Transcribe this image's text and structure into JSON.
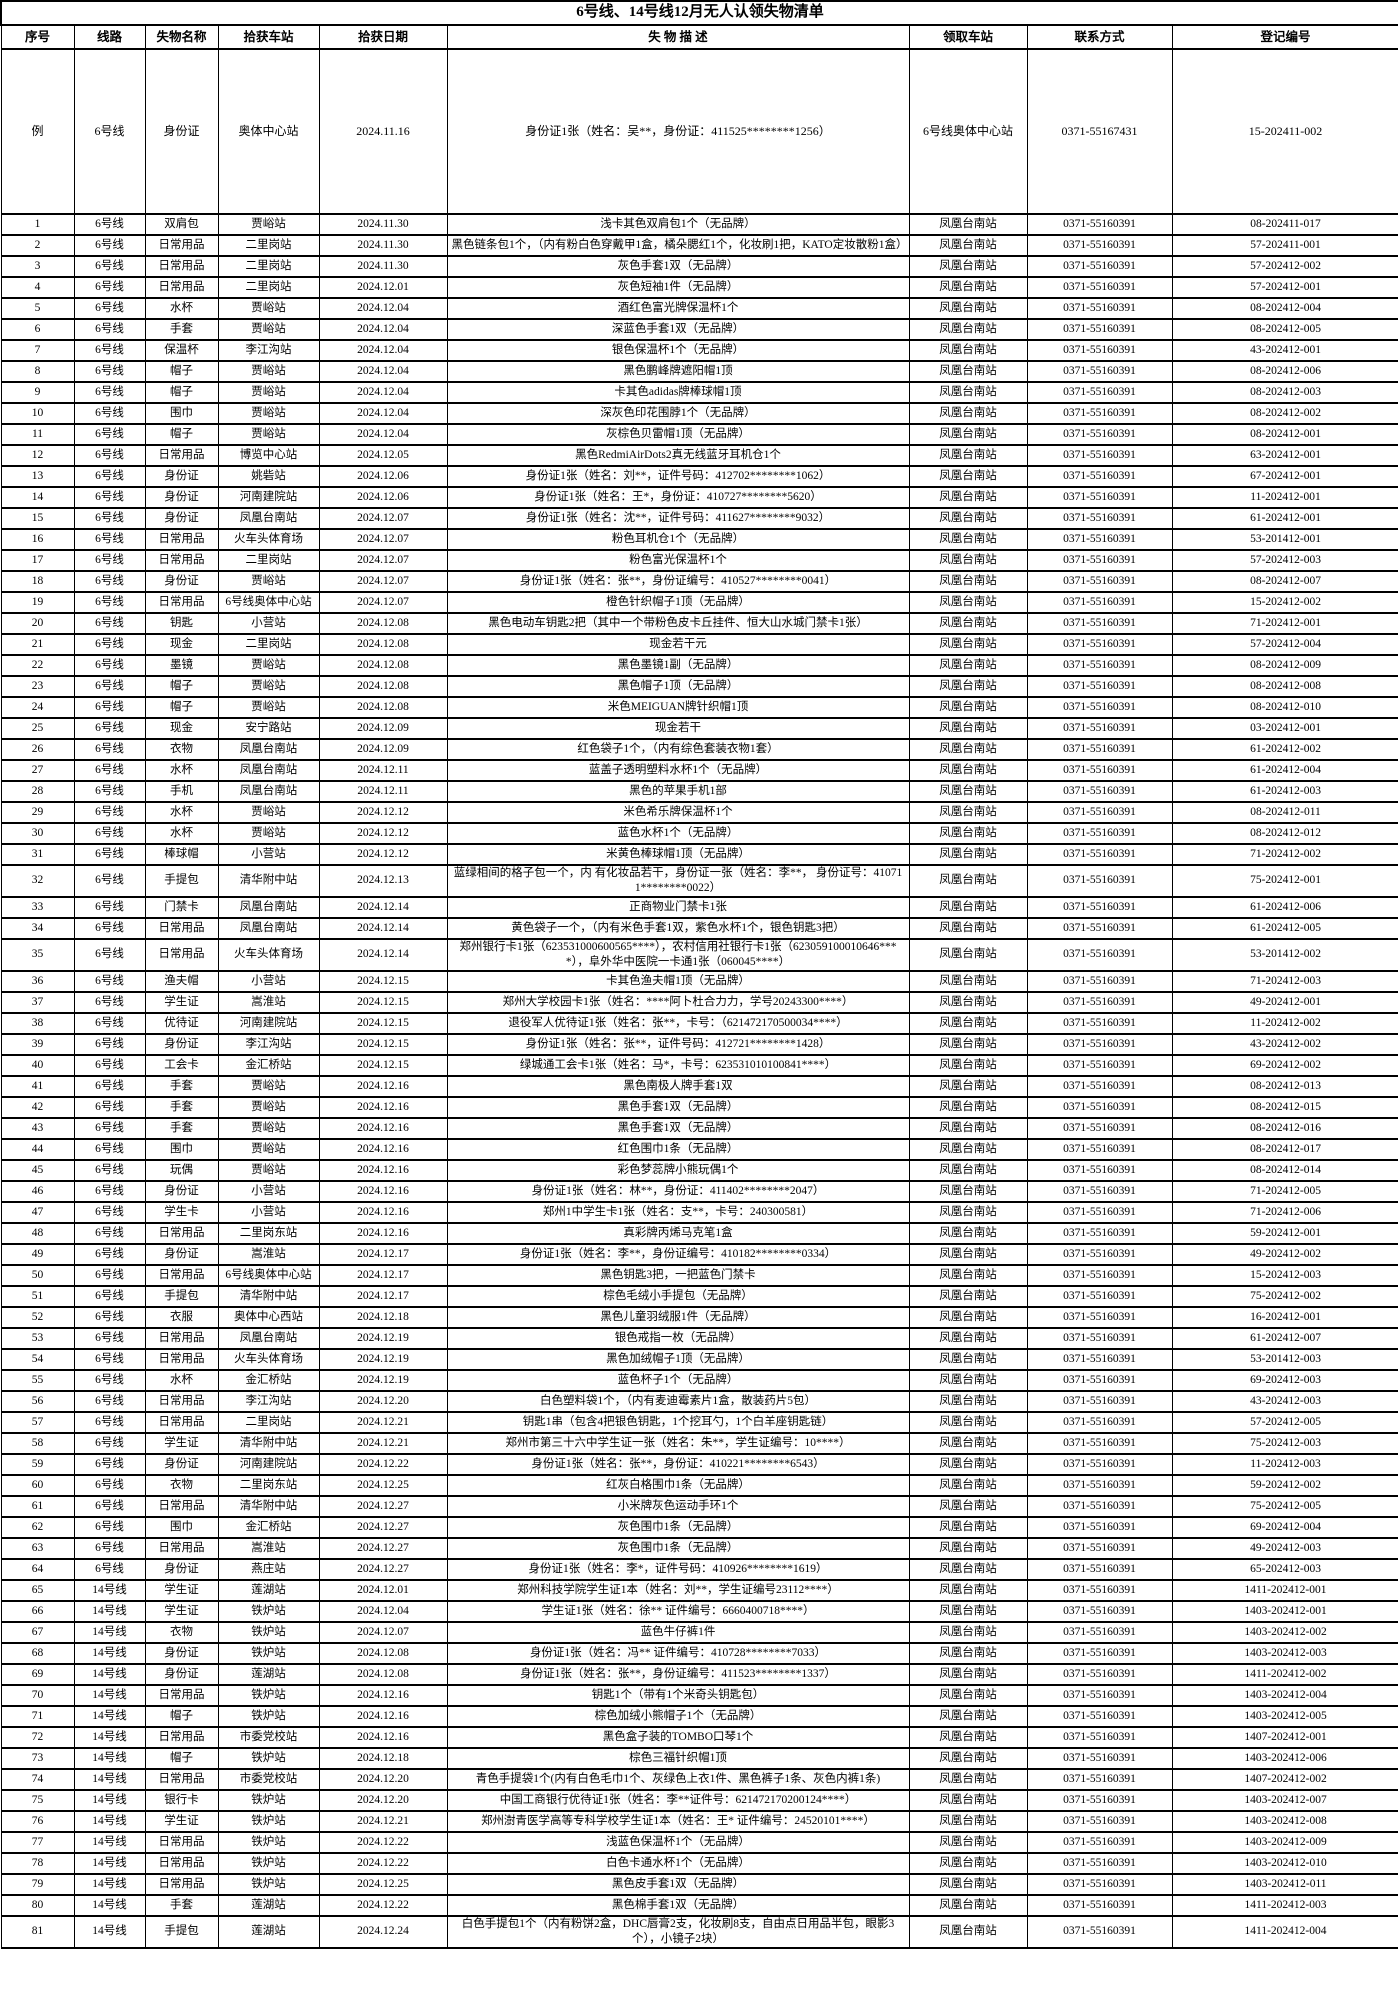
{
  "title": "6号线、14号线12月无人认领失物清单",
  "columns": [
    "序号",
    "线路",
    "失物名称",
    "拾获车站",
    "拾获日期",
    "失 物 描 述",
    "领取车站",
    "联系方式",
    "登记编号"
  ],
  "column_keys": [
    "no",
    "line",
    "item",
    "station",
    "date",
    "description",
    "pickup",
    "contact",
    "regno"
  ],
  "example_row": [
    "例",
    "6号线",
    "身份证",
    "奥体中心站",
    "2024.11.16",
    "身份证1张（姓名：吴**，身份证：411525********1256）",
    "6号线奥体中心站",
    "0371-55167431",
    "15-202411-002"
  ],
  "rows": [
    [
      "1",
      "6号线",
      "双肩包",
      "贾峪站",
      "2024.11.30",
      "浅卡其色双肩包1个（无品牌）",
      "凤凰台南站",
      "0371-55160391",
      "08-202411-017"
    ],
    [
      "2",
      "6号线",
      "日常用品",
      "二里岗站",
      "2024.11.30",
      "黑色链条包1个，（内有粉白色穿戴甲1盒，橘朵腮红1个，化妆刷1把，KATO定妆散粉1盒）",
      "凤凰台南站",
      "0371-55160391",
      "57-202411-001"
    ],
    [
      "3",
      "6号线",
      "日常用品",
      "二里岗站",
      "2024.11.30",
      "灰色手套1双（无品牌）",
      "凤凰台南站",
      "0371-55160391",
      "57-202412-002"
    ],
    [
      "4",
      "6号线",
      "日常用品",
      "二里岗站",
      "2024.12.01",
      "灰色短袖1件（无品牌）",
      "凤凰台南站",
      "0371-55160391",
      "57-202412-001"
    ],
    [
      "5",
      "6号线",
      "水杯",
      "贾峪站",
      "2024.12.04",
      "酒红色富光牌保温杯1个",
      "凤凰台南站",
      "0371-55160391",
      "08-202412-004"
    ],
    [
      "6",
      "6号线",
      "手套",
      "贾峪站",
      "2024.12.04",
      "深蓝色手套1双（无品牌）",
      "凤凰台南站",
      "0371-55160391",
      "08-202412-005"
    ],
    [
      "7",
      "6号线",
      "保温杯",
      "李江沟站",
      "2024.12.04",
      "银色保温杯1个（无品牌）",
      "凤凰台南站",
      "0371-55160391",
      "43-202412-001"
    ],
    [
      "8",
      "6号线",
      "帽子",
      "贾峪站",
      "2024.12.04",
      "黑色鹏峰牌遮阳帽1顶",
      "凤凰台南站",
      "0371-55160391",
      "08-202412-006"
    ],
    [
      "9",
      "6号线",
      "帽子",
      "贾峪站",
      "2024.12.04",
      "卡其色adidas牌棒球帽1顶",
      "凤凰台南站",
      "0371-55160391",
      "08-202412-003"
    ],
    [
      "10",
      "6号线",
      "围巾",
      "贾峪站",
      "2024.12.04",
      "深灰色印花围脖1个（无品牌）",
      "凤凰台南站",
      "0371-55160391",
      "08-202412-002"
    ],
    [
      "11",
      "6号线",
      "帽子",
      "贾峪站",
      "2024.12.04",
      "灰棕色贝雷帽1顶（无品牌）",
      "凤凰台南站",
      "0371-55160391",
      "08-202412-001"
    ],
    [
      "12",
      "6号线",
      "日常用品",
      "博览中心站",
      "2024.12.05",
      "黑色RedmiAirDots2真无线蓝牙耳机仓1个",
      "凤凰台南站",
      "0371-55160391",
      "63-202412-001"
    ],
    [
      "13",
      "6号线",
      "身份证",
      "姚砦站",
      "2024.12.06",
      "身份证1张（姓名：刘**，证件号码：412702********1062）",
      "凤凰台南站",
      "0371-55160391",
      "67-202412-001"
    ],
    [
      "14",
      "6号线",
      "身份证",
      "河南建院站",
      "2024.12.06",
      "身份证1张（姓名：王*，身份证：410727********5620）",
      "凤凰台南站",
      "0371-55160391",
      "11-202412-001"
    ],
    [
      "15",
      "6号线",
      "身份证",
      "凤凰台南站",
      "2024.12.07",
      "身份证1张（姓名：沈**，证件号码：411627********9032）",
      "凤凰台南站",
      "0371-55160391",
      "61-202412-001"
    ],
    [
      "16",
      "6号线",
      "日常用品",
      "火车头体育场",
      "2024.12.07",
      "粉色耳机仓1个（无品牌）",
      "凤凰台南站",
      "0371-55160391",
      "53-201412-001"
    ],
    [
      "17",
      "6号线",
      "日常用品",
      "二里岗站",
      "2024.12.07",
      "粉色富光保温杯1个",
      "凤凰台南站",
      "0371-55160391",
      "57-202412-003"
    ],
    [
      "18",
      "6号线",
      "身份证",
      "贾峪站",
      "2024.12.07",
      "身份证1张（姓名：张**，身份证编号：410527********0041）",
      "凤凰台南站",
      "0371-55160391",
      "08-202412-007"
    ],
    [
      "19",
      "6号线",
      "日常用品",
      "6号线奥体中心站",
      "2024.12.07",
      "橙色针织帽子1顶（无品牌）",
      "凤凰台南站",
      "0371-55160391",
      "15-202412-002"
    ],
    [
      "20",
      "6号线",
      "钥匙",
      "小营站",
      "2024.12.08",
      "黑色电动车钥匙2把（其中一个带粉色皮卡丘挂件、恒大山水城门禁卡1张）",
      "凤凰台南站",
      "0371-55160391",
      "71-202412-001"
    ],
    [
      "21",
      "6号线",
      "现金",
      "二里岗站",
      "2024.12.08",
      "现金若干元",
      "凤凰台南站",
      "0371-55160391",
      "57-202412-004"
    ],
    [
      "22",
      "6号线",
      "墨镜",
      "贾峪站",
      "2024.12.08",
      "黑色墨镜1副（无品牌）",
      "凤凰台南站",
      "0371-55160391",
      "08-202412-009"
    ],
    [
      "23",
      "6号线",
      "帽子",
      "贾峪站",
      "2024.12.08",
      "黑色帽子1顶（无品牌）",
      "凤凰台南站",
      "0371-55160391",
      "08-202412-008"
    ],
    [
      "24",
      "6号线",
      "帽子",
      "贾峪站",
      "2024.12.08",
      "米色MEIGUAN牌针织帽1顶",
      "凤凰台南站",
      "0371-55160391",
      "08-202412-010"
    ],
    [
      "25",
      "6号线",
      "现金",
      "安宁路站",
      "2024.12.09",
      "现金若干",
      "凤凰台南站",
      "0371-55160391",
      "03-202412-001"
    ],
    [
      "26",
      "6号线",
      "衣物",
      "凤凰台南站",
      "2024.12.09",
      "红色袋子1个，（内有综色套装衣物1套）",
      "凤凰台南站",
      "0371-55160391",
      "61-202412-002"
    ],
    [
      "27",
      "6号线",
      "水杯",
      "凤凰台南站",
      "2024.12.11",
      "蓝盖子透明塑料水杯1个（无品牌）",
      "凤凰台南站",
      "0371-55160391",
      "61-202412-004"
    ],
    [
      "28",
      "6号线",
      "手机",
      "凤凰台南站",
      "2024.12.11",
      "黑色的苹果手机1部",
      "凤凰台南站",
      "0371-55160391",
      "61-202412-003"
    ],
    [
      "29",
      "6号线",
      "水杯",
      "贾峪站",
      "2024.12.12",
      "米色希乐牌保温杯1个",
      "凤凰台南站",
      "0371-55160391",
      "08-202412-011"
    ],
    [
      "30",
      "6号线",
      "水杯",
      "贾峪站",
      "2024.12.12",
      "蓝色水杯1个（无品牌）",
      "凤凰台南站",
      "0371-55160391",
      "08-202412-012"
    ],
    [
      "31",
      "6号线",
      "棒球帽",
      "小营站",
      "2024.12.12",
      "米黄色棒球帽1顶（无品牌）",
      "凤凰台南站",
      "0371-55160391",
      "71-202412-002"
    ],
    [
      "32",
      "6号线",
      "手提包",
      "清华附中站",
      "2024.12.13",
      "蓝绿相间的格子包一个，内 有化妆品若干，身份证一张（姓名：李**， 身份证号：410711********0022）",
      "凤凰台南站",
      "0371-55160391",
      "75-202412-001"
    ],
    [
      "33",
      "6号线",
      "门禁卡",
      "凤凰台南站",
      "2024.12.14",
      "正商物业门禁卡1张",
      "凤凰台南站",
      "0371-55160391",
      "61-202412-006"
    ],
    [
      "34",
      "6号线",
      "日常用品",
      "凤凰台南站",
      "2024.12.14",
      "黄色袋子一个，（内有米色手套1双，紫色水杯1个，银色钥匙3把）",
      "凤凰台南站",
      "0371-55160391",
      "61-202412-005"
    ],
    [
      "35",
      "6号线",
      "日常用品",
      "火车头体育场",
      "2024.12.14",
      "郑州银行卡1张（623531000600565****），农村信用社银行卡1张（623059100010646****），阜外华中医院一卡通1张（060045****）",
      "凤凰台南站",
      "0371-55160391",
      "53-201412-002"
    ],
    [
      "36",
      "6号线",
      "渔夫帽",
      "小营站",
      "2024.12.15",
      "卡其色渔夫帽1顶（无品牌）",
      "凤凰台南站",
      "0371-55160391",
      "71-202412-003"
    ],
    [
      "37",
      "6号线",
      "学生证",
      "嵩淮站",
      "2024.12.15",
      "郑州大学校园卡1张（姓名：****阿卜杜合力力，学号20243300****）",
      "凤凰台南站",
      "0371-55160391",
      "49-202412-001"
    ],
    [
      "38",
      "6号线",
      "优待证",
      "河南建院站",
      "2024.12.15",
      "退役军人优待证1张（姓名：张**，卡号：（621472170500034****）",
      "凤凰台南站",
      "0371-55160391",
      "11-202412-002"
    ],
    [
      "39",
      "6号线",
      "身份证",
      "李江沟站",
      "2024.12.15",
      "身份证1张（姓名：张**，证件号码：412721********1428）",
      "凤凰台南站",
      "0371-55160391",
      "43-202412-002"
    ],
    [
      "40",
      "6号线",
      "工会卡",
      "金汇桥站",
      "2024.12.15",
      "绿城通工会卡1张（姓名：马*，卡号：623531010100841****）",
      "凤凰台南站",
      "0371-55160391",
      "69-202412-002"
    ],
    [
      "41",
      "6号线",
      "手套",
      "贾峪站",
      "2024.12.16",
      "黑色南极人牌手套1双",
      "凤凰台南站",
      "0371-55160391",
      "08-202412-013"
    ],
    [
      "42",
      "6号线",
      "手套",
      "贾峪站",
      "2024.12.16",
      "黑色手套1双（无品牌）",
      "凤凰台南站",
      "0371-55160391",
      "08-202412-015"
    ],
    [
      "43",
      "6号线",
      "手套",
      "贾峪站",
      "2024.12.16",
      "黑色手套1双（无品牌）",
      "凤凰台南站",
      "0371-55160391",
      "08-202412-016"
    ],
    [
      "44",
      "6号线",
      "围巾",
      "贾峪站",
      "2024.12.16",
      "红色围巾1条（无品牌）",
      "凤凰台南站",
      "0371-55160391",
      "08-202412-017"
    ],
    [
      "45",
      "6号线",
      "玩偶",
      "贾峪站",
      "2024.12.16",
      "彩色梦蕊牌小熊玩偶1个",
      "凤凰台南站",
      "0371-55160391",
      "08-202412-014"
    ],
    [
      "46",
      "6号线",
      "身份证",
      "小营站",
      "2024.12.16",
      "身份证1张（姓名：林**，身份证：411402********2047）",
      "凤凰台南站",
      "0371-55160391",
      "71-202412-005"
    ],
    [
      "47",
      "6号线",
      "学生卡",
      "小营站",
      "2024.12.16",
      "郑州1中学生卡1张（姓名：支**，卡号：240300581）",
      "凤凰台南站",
      "0371-55160391",
      "71-202412-006"
    ],
    [
      "48",
      "6号线",
      "日常用品",
      "二里岗东站",
      "2024.12.16",
      "真彩牌丙烯马克笔1盒",
      "凤凰台南站",
      "0371-55160391",
      "59-202412-001"
    ],
    [
      "49",
      "6号线",
      "身份证",
      "嵩淮站",
      "2024.12.17",
      "身份证1张（姓名：李**，身份证编号：410182********0334）",
      "凤凰台南站",
      "0371-55160391",
      "49-202412-002"
    ],
    [
      "50",
      "6号线",
      "日常用品",
      "6号线奥体中心站",
      "2024.12.17",
      "黑色钥匙3把，一把蓝色门禁卡",
      "凤凰台南站",
      "0371-55160391",
      "15-202412-003"
    ],
    [
      "51",
      "6号线",
      "手提包",
      "清华附中站",
      "2024.12.17",
      "棕色毛绒小手提包（无品牌）",
      "凤凰台南站",
      "0371-55160391",
      "75-202412-002"
    ],
    [
      "52",
      "6号线",
      "衣服",
      "奥体中心西站",
      "2024.12.18",
      "黑色儿童羽绒服1件（无品牌）",
      "凤凰台南站",
      "0371-55160391",
      "16-202412-001"
    ],
    [
      "53",
      "6号线",
      "日常用品",
      "凤凰台南站",
      "2024.12.19",
      "银色戒指一枚（无品牌）",
      "凤凰台南站",
      "0371-55160391",
      "61-202412-007"
    ],
    [
      "54",
      "6号线",
      "日常用品",
      "火车头体育场",
      "2024.12.19",
      "黑色加绒帽子1顶（无品牌）",
      "凤凰台南站",
      "0371-55160391",
      "53-201412-003"
    ],
    [
      "55",
      "6号线",
      "水杯",
      "金汇桥站",
      "2024.12.19",
      "蓝色杯子1个（无品牌）",
      "凤凰台南站",
      "0371-55160391",
      "69-202412-003"
    ],
    [
      "56",
      "6号线",
      "日常用品",
      "李江沟站",
      "2024.12.20",
      "白色塑料袋1个，（内有麦迪霉素片1盒，散装药片5包）",
      "凤凰台南站",
      "0371-55160391",
      "43-202412-003"
    ],
    [
      "57",
      "6号线",
      "日常用品",
      "二里岗站",
      "2024.12.21",
      "钥匙1串（包含4把银色钥匙，1个挖耳勺，1个白羊座钥匙链）",
      "凤凰台南站",
      "0371-55160391",
      "57-202412-005"
    ],
    [
      "58",
      "6号线",
      "学生证",
      "清华附中站",
      "2024.12.21",
      "郑州市第三十六中学生证一张（姓名：朱**，学生证编号：10****）",
      "凤凰台南站",
      "0371-55160391",
      "75-202412-003"
    ],
    [
      "59",
      "6号线",
      "身份证",
      "河南建院站",
      "2024.12.22",
      "身份证1张（姓名：张**，身份证：410221********6543）",
      "凤凰台南站",
      "0371-55160391",
      "11-202412-003"
    ],
    [
      "60",
      "6号线",
      "衣物",
      "二里岗东站",
      "2024.12.25",
      "红灰白格围巾1条（无品牌）",
      "凤凰台南站",
      "0371-55160391",
      "59-202412-002"
    ],
    [
      "61",
      "6号线",
      "日常用品",
      "清华附中站",
      "2024.12.27",
      "小米牌灰色运动手环1个",
      "凤凰台南站",
      "0371-55160391",
      "75-202412-005"
    ],
    [
      "62",
      "6号线",
      "围巾",
      "金汇桥站",
      "2024.12.27",
      "灰色围巾1条（无品牌）",
      "凤凰台南站",
      "0371-55160391",
      "69-202412-004"
    ],
    [
      "63",
      "6号线",
      "日常用品",
      "嵩淮站",
      "2024.12.27",
      "灰色围巾1条（无品牌）",
      "凤凰台南站",
      "0371-55160391",
      "49-202412-003"
    ],
    [
      "64",
      "6号线",
      "身份证",
      "燕庄站",
      "2024.12.27",
      "身份证1张（姓名：李*，证件号码：410926********1619）",
      "凤凰台南站",
      "0371-55160391",
      "65-202412-003"
    ],
    [
      "65",
      "14号线",
      "学生证",
      "莲湖站",
      "2024.12.01",
      "郑州科技学院学生证1本（姓名：刘**，学生证编号23112****）",
      "凤凰台南站",
      "0371-55160391",
      "1411-202412-001"
    ],
    [
      "66",
      "14号线",
      "学生证",
      "铁炉站",
      "2024.12.04",
      "学生证1张（姓名：徐** 证件编号：6660400718****）",
      "凤凰台南站",
      "0371-55160391",
      "1403-202412-001"
    ],
    [
      "67",
      "14号线",
      "衣物",
      "铁炉站",
      "2024.12.07",
      "蓝色牛仔裤1件",
      "凤凰台南站",
      "0371-55160391",
      "1403-202412-002"
    ],
    [
      "68",
      "14号线",
      "身份证",
      "铁炉站",
      "2024.12.08",
      "身份证1张（姓名：冯** 证件编号：410728********7033）",
      "凤凰台南站",
      "0371-55160391",
      "1403-202412-003"
    ],
    [
      "69",
      "14号线",
      "身份证",
      "莲湖站",
      "2024.12.08",
      "身份证1张（姓名：张**，身份证编号：411523********1337）",
      "凤凰台南站",
      "0371-55160391",
      "1411-202412-002"
    ],
    [
      "70",
      "14号线",
      "日常用品",
      "铁炉站",
      "2024.12.16",
      "钥匙1个（带有1个米奇头钥匙包）",
      "凤凰台南站",
      "0371-55160391",
      "1403-202412-004"
    ],
    [
      "71",
      "14号线",
      "帽子",
      "铁炉站",
      "2024.12.16",
      "棕色加绒小熊帽子1个（无品牌）",
      "凤凰台南站",
      "0371-55160391",
      "1403-202412-005"
    ],
    [
      "72",
      "14号线",
      "日常用品",
      "市委党校站",
      "2024.12.16",
      "黑色盒子装的TOMBO口琴1个",
      "凤凰台南站",
      "0371-55160391",
      "1407-202412-001"
    ],
    [
      "73",
      "14号线",
      "帽子",
      "铁炉站",
      "2024.12.18",
      "棕色三福针织帽1顶",
      "凤凰台南站",
      "0371-55160391",
      "1403-202412-006"
    ],
    [
      "74",
      "14号线",
      "日常用品",
      "市委党校站",
      "2024.12.20",
      "青色手提袋1个(内有白色毛巾1个、灰绿色上衣1件、黑色裤子1条、灰色内裤1条)",
      "凤凰台南站",
      "0371-55160391",
      "1407-202412-002"
    ],
    [
      "75",
      "14号线",
      "银行卡",
      "铁炉站",
      "2024.12.20",
      "中国工商银行优待证1张（姓名：李**证件号：621472170200124****）",
      "凤凰台南站",
      "0371-55160391",
      "1403-202412-007"
    ],
    [
      "76",
      "14号线",
      "学生证",
      "铁炉站",
      "2024.12.21",
      "郑州澍青医学高等专科学校学生证1本（姓名：王* 证件编号：24520101****）",
      "凤凰台南站",
      "0371-55160391",
      "1403-202412-008"
    ],
    [
      "77",
      "14号线",
      "日常用品",
      "铁炉站",
      "2024.12.22",
      "浅蓝色保温杯1个（无品牌）",
      "凤凰台南站",
      "0371-55160391",
      "1403-202412-009"
    ],
    [
      "78",
      "14号线",
      "日常用品",
      "铁炉站",
      "2024.12.22",
      "白色卡通水杯1个（无品牌）",
      "凤凰台南站",
      "0371-55160391",
      "1403-202412-010"
    ],
    [
      "79",
      "14号线",
      "日常用品",
      "铁炉站",
      "2024.12.25",
      "黑色皮手套1双（无品牌）",
      "凤凰台南站",
      "0371-55160391",
      "1403-202412-011"
    ],
    [
      "80",
      "14号线",
      "手套",
      "莲湖站",
      "2024.12.22",
      "黑色棉手套1双（无品牌）",
      "凤凰台南站",
      "0371-55160391",
      "1411-202412-003"
    ],
    [
      "81",
      "14号线",
      "手提包",
      "莲湖站",
      "2024.12.24",
      "白色手提包1个（内有粉饼2盒，DHC唇膏2支，化妆刷8支，自由点日用品半包，眼影3个），小镜子2块）",
      "凤凰台南站",
      "0371-55160391",
      "1411-202412-004"
    ]
  ]
}
